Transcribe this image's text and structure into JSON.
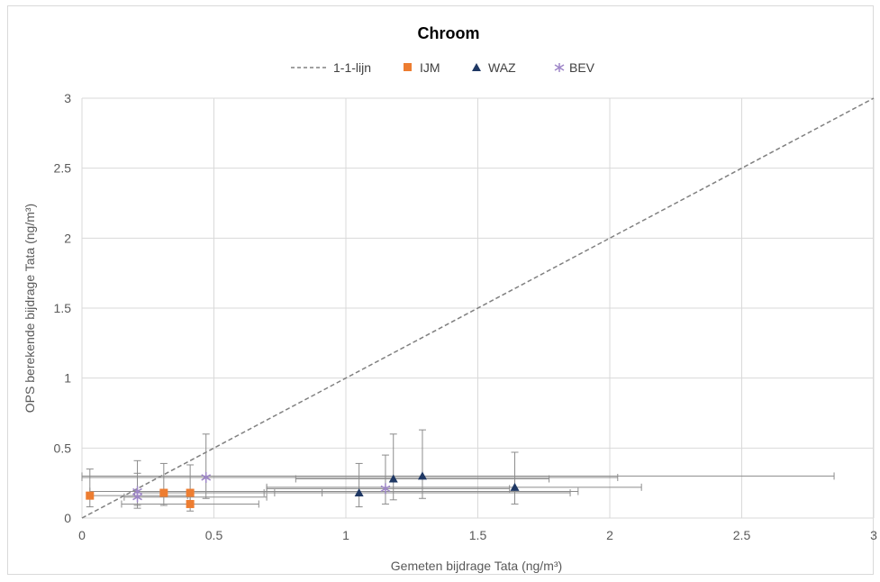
{
  "chart_data": {
    "type": "scatter",
    "title": "Chroom",
    "xlabel": "Gemeten bijdrage Tata (ng/m³)",
    "ylabel": "OPS berekende bijdrage Tata (ng/m³)",
    "xlim": [
      0,
      3
    ],
    "ylim": [
      0,
      3
    ],
    "xticks": [
      "0",
      "0.5",
      "1",
      "1.5",
      "2",
      "2.5",
      "3"
    ],
    "yticks": [
      "0",
      "0.5",
      "1",
      "1.5",
      "2",
      "2.5",
      "3"
    ],
    "grid": true,
    "legend_position": "top",
    "reference_line": {
      "name": "1-1-lijn",
      "x": [
        0,
        3
      ],
      "y": [
        0,
        3
      ],
      "color": "#808080"
    },
    "series": [
      {
        "name": "IJM",
        "marker": "square",
        "color": "#ED7D31",
        "points": [
          {
            "x": 0.03,
            "y": 0.16,
            "xerr": [
              0.03,
              0.4
            ],
            "yerr": [
              0.08,
              0.35
            ]
          },
          {
            "x": 0.31,
            "y": 0.18,
            "xerr": [
              0.2,
              0.73
            ],
            "yerr": [
              0.09,
              0.39
            ]
          },
          {
            "x": 0.41,
            "y": 0.18,
            "xerr": [
              0.21,
              0.91
            ],
            "yerr": [
              0.09,
              0.38
            ]
          },
          {
            "x": 0.41,
            "y": 0.1,
            "xerr": [
              0.15,
              0.67
            ],
            "yerr": [
              0.05,
              0.16
            ]
          }
        ]
      },
      {
        "name": "WAZ",
        "marker": "triangle",
        "color": "#1F3864",
        "points": [
          {
            "x": 1.05,
            "y": 0.18,
            "xerr": [
              0.69,
              1.85
            ],
            "yerr": [
              0.08,
              0.39
            ]
          },
          {
            "x": 1.18,
            "y": 0.28,
            "xerr": [
              0.81,
              1.77
            ],
            "yerr": [
              0.13,
              0.6
            ]
          },
          {
            "x": 1.29,
            "y": 0.3,
            "xerr": [
              0.0,
              2.85
            ],
            "yerr": [
              0.14,
              0.63
            ]
          },
          {
            "x": 1.64,
            "y": 0.22,
            "xerr": [
              0.7,
              2.12
            ],
            "yerr": [
              0.1,
              0.47
            ]
          }
        ]
      },
      {
        "name": "BEV",
        "marker": "star",
        "color": "#9E86C8",
        "points": [
          {
            "x": 0.21,
            "y": 0.19,
            "xerr": [
              0.03,
              1.88
            ],
            "yerr": [
              0.09,
              0.41
            ]
          },
          {
            "x": 0.47,
            "y": 0.29,
            "xerr": [
              0.0,
              2.03
            ],
            "yerr": [
              0.14,
              0.6
            ]
          },
          {
            "x": 1.15,
            "y": 0.21,
            "xerr": [
              0.7,
              1.62
            ],
            "yerr": [
              0.1,
              0.45
            ]
          },
          {
            "x": 0.21,
            "y": 0.15,
            "xerr": [
              0.16,
              0.7
            ],
            "yerr": [
              0.07,
              0.32
            ]
          }
        ]
      }
    ]
  }
}
